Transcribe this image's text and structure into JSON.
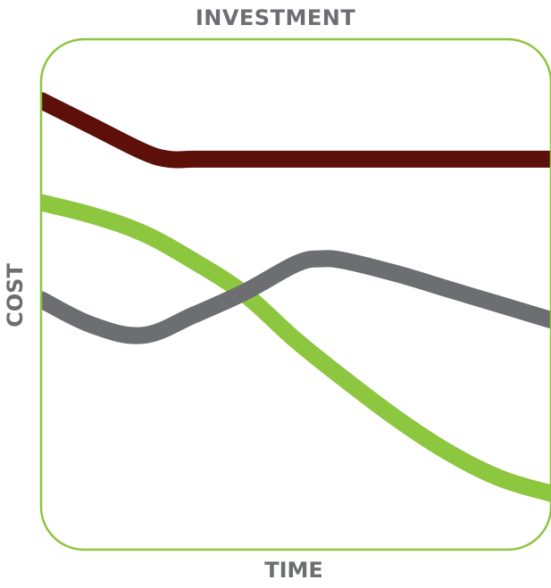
{
  "chart_data": {
    "type": "line",
    "title": "INVESTMENT",
    "xlabel": "TIME",
    "ylabel": "COST",
    "xlim": [
      0,
      100
    ],
    "ylim": [
      0,
      100
    ],
    "grid": false,
    "frame_color": "#8dc63f",
    "series": [
      {
        "color": "#5c1009",
        "x": [
          0,
          10,
          20,
          25,
          30,
          40,
          50,
          60,
          70,
          80,
          90,
          100
        ],
        "y": [
          88,
          83,
          78,
          76.5,
          76.5,
          76.5,
          76.5,
          76.5,
          76.5,
          76.5,
          76.5,
          76.5
        ]
      },
      {
        "color": "#8dc63f",
        "x": [
          0,
          10,
          20,
          30,
          40,
          50,
          60,
          70,
          80,
          90,
          100
        ],
        "y": [
          68,
          65.5,
          62,
          56.5,
          50,
          41,
          33,
          25.5,
          19,
          14,
          11
        ]
      },
      {
        "color": "#6d6e71",
        "x": [
          0,
          10,
          20,
          30,
          40,
          50,
          55,
          60,
          70,
          80,
          90,
          100
        ],
        "y": [
          49,
          44,
          42,
          46,
          50.5,
          56,
          57,
          56.5,
          54,
          51,
          48,
          45
        ]
      }
    ]
  }
}
